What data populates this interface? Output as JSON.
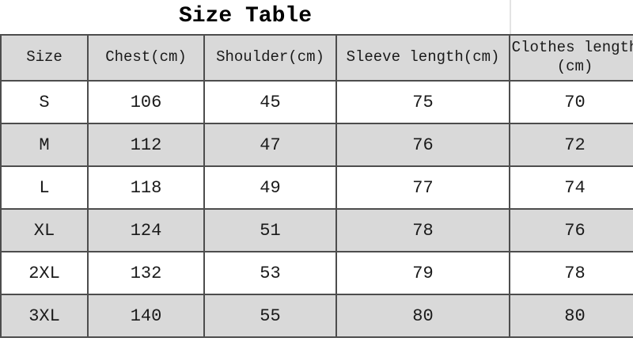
{
  "title": "Size Table",
  "table": {
    "columns": [
      "Size",
      "Chest(cm)",
      "Shoulder(cm)",
      "Sleeve length(cm)",
      "Clothes length\n(cm)"
    ],
    "rows": [
      [
        "S",
        "106",
        "45",
        "75",
        "70"
      ],
      [
        "M",
        "112",
        "47",
        "76",
        "72"
      ],
      [
        "L",
        "118",
        "49",
        "77",
        "74"
      ],
      [
        "XL",
        "124",
        "51",
        "78",
        "76"
      ],
      [
        "2XL",
        "132",
        "53",
        "79",
        "78"
      ],
      [
        "3XL",
        "140",
        "55",
        "80",
        "80"
      ]
    ]
  },
  "colors": {
    "header_bg": "#d9d9d9",
    "alt_row_bg": "#d9d9d9",
    "border": "#4d4d4d",
    "text": "#1a1a1a"
  }
}
